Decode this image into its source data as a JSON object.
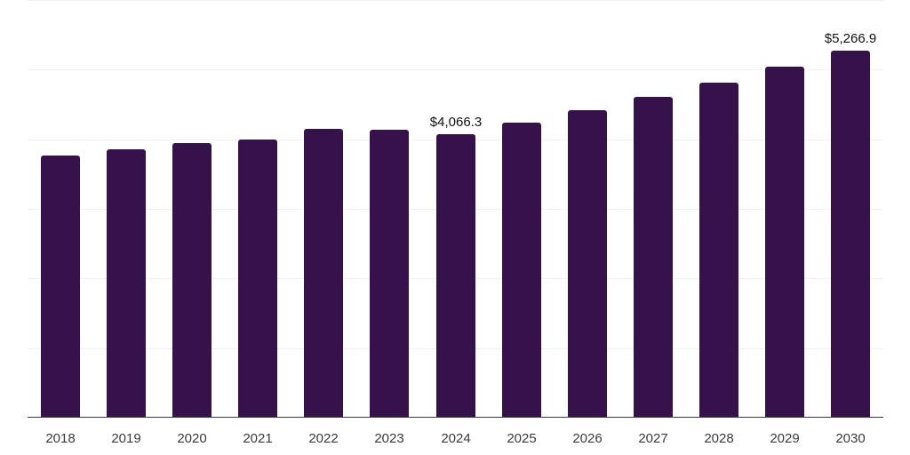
{
  "chart_data": {
    "type": "bar",
    "title": "",
    "xlabel": "",
    "ylabel": "",
    "categories": [
      "2018",
      "2019",
      "2020",
      "2021",
      "2022",
      "2023",
      "2024",
      "2025",
      "2026",
      "2027",
      "2028",
      "2029",
      "2030"
    ],
    "values": [
      3772,
      3849,
      3951,
      3990,
      4143,
      4130,
      4066.3,
      4233,
      4412,
      4604,
      4808,
      5038,
      5266.9
    ],
    "ylim": [
      0,
      6000
    ],
    "grid": true,
    "yticks_visible": false,
    "data_labels": [
      {
        "category": "2024",
        "text": "$4,066.3"
      },
      {
        "category": "2030",
        "text": "$5,266.9"
      }
    ],
    "bar_color": "#36124a",
    "legend": null
  }
}
